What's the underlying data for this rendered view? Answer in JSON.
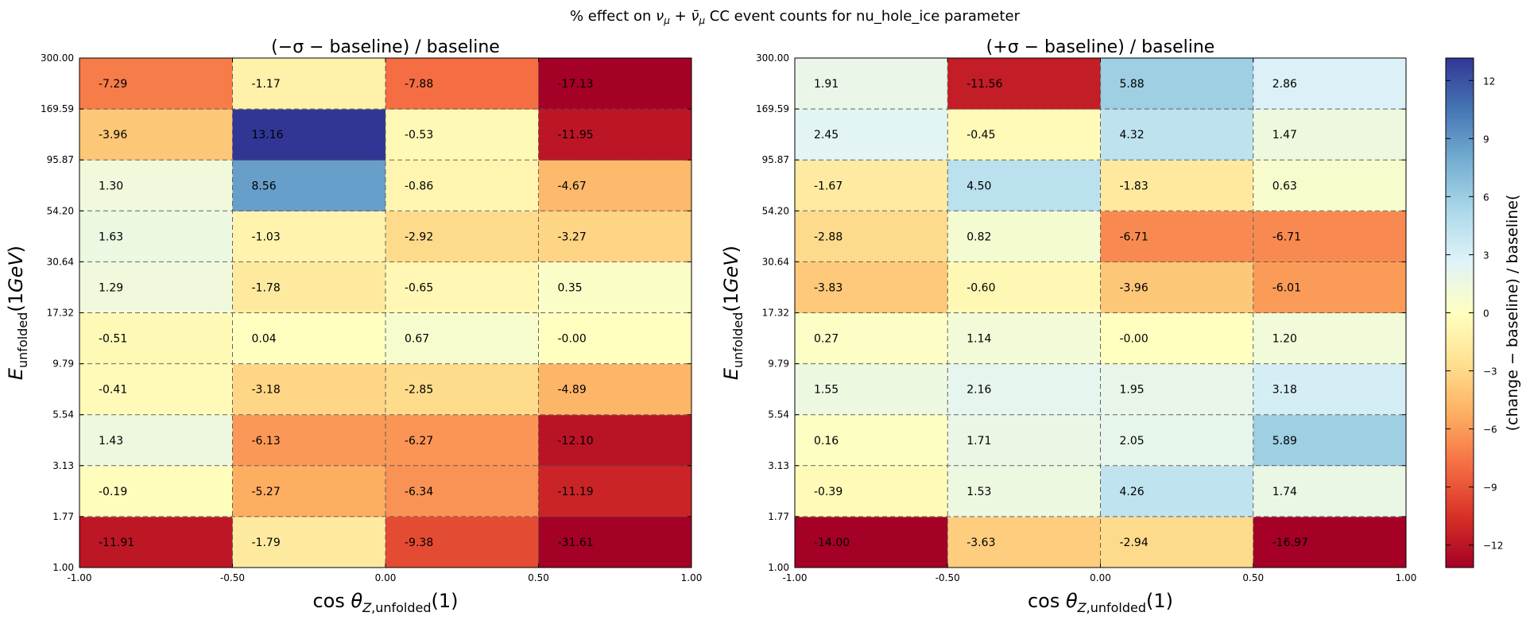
{
  "suptitle": "% effect on ν_μ + ν̄_μ CC event counts for nu_hole_ice parameter",
  "colorbar": {
    "label": "(change − baseline) / baseline(",
    "ticks": [
      12,
      9,
      6,
      3,
      0,
      -3,
      -6,
      -9,
      -12
    ],
    "tick_labels": [
      "12",
      "9",
      "6",
      "3",
      "0",
      "−3",
      "−6",
      "−9",
      "−12"
    ],
    "vmin": -13.16,
    "vmax": 13.16,
    "colormap": "RdYlBu"
  },
  "chart_data": [
    {
      "type": "heatmap",
      "title": "(−σ − baseline) / baseline",
      "xlabel": "cos θ_{Z,unfolded}(1)",
      "ylabel": "E_unfolded(1GeV)",
      "x_edges": [
        "-1.00",
        "-0.50",
        "0.00",
        "0.50",
        "1.00"
      ],
      "y_edges": [
        "1.00",
        "1.77",
        "3.13",
        "5.54",
        "9.79",
        "17.32",
        "30.64",
        "54.20",
        "95.87",
        "169.59",
        "300.00"
      ],
      "values": [
        [
          "-11.91",
          "-1.79",
          "-9.38",
          "-31.61"
        ],
        [
          "-0.19",
          "-5.27",
          "-6.34",
          "-11.19"
        ],
        [
          "1.43",
          "-6.13",
          "-6.27",
          "-12.10"
        ],
        [
          "-0.41",
          "-3.18",
          "-2.85",
          "-4.89"
        ],
        [
          "-0.51",
          "0.04",
          "0.67",
          "-0.00"
        ],
        [
          "1.29",
          "-1.78",
          "-0.65",
          "0.35"
        ],
        [
          "1.63",
          "-1.03",
          "-2.92",
          "-3.27"
        ],
        [
          "1.30",
          "8.56",
          "-0.86",
          "-4.67"
        ],
        [
          "-3.96",
          "13.16",
          "-0.53",
          "-11.95"
        ],
        [
          "-7.29",
          "-1.17",
          "-7.88",
          "-17.13"
        ]
      ],
      "grid": "dashed"
    },
    {
      "type": "heatmap",
      "title": "(+σ − baseline) / baseline",
      "xlabel": "cos θ_{Z,unfolded}(1)",
      "ylabel": "E_unfolded(1GeV)",
      "x_edges": [
        "-1.00",
        "-0.50",
        "0.00",
        "0.50",
        "1.00"
      ],
      "y_edges": [
        "1.00",
        "1.77",
        "3.13",
        "5.54",
        "9.79",
        "17.32",
        "30.64",
        "54.20",
        "95.87",
        "169.59",
        "300.00"
      ],
      "values": [
        [
          "-14.00",
          "-3.63",
          "-2.94",
          "-16.97"
        ],
        [
          "-0.39",
          "1.53",
          "4.26",
          "1.74"
        ],
        [
          "0.16",
          "1.71",
          "2.05",
          "5.89"
        ],
        [
          "1.55",
          "2.16",
          "1.95",
          "3.18"
        ],
        [
          "0.27",
          "1.14",
          "-0.00",
          "1.20"
        ],
        [
          "-3.83",
          "-0.60",
          "-3.96",
          "-6.01"
        ],
        [
          "-2.88",
          "0.82",
          "-6.71",
          "-6.71"
        ],
        [
          "-1.67",
          "4.50",
          "-1.83",
          "0.63"
        ],
        [
          "2.45",
          "-0.45",
          "4.32",
          "1.47"
        ],
        [
          "1.91",
          "-11.56",
          "5.88",
          "2.86"
        ]
      ],
      "grid": "dashed"
    }
  ]
}
